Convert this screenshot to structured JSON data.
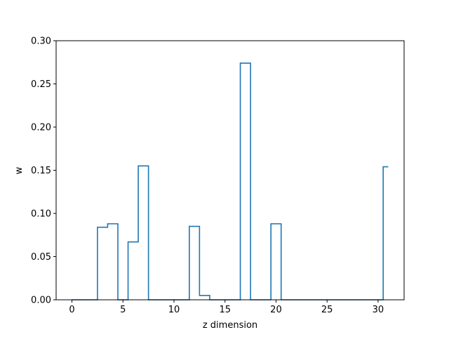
{
  "chart_data": {
    "type": "line",
    "drawstyle": "steps-mid",
    "title": "",
    "xlabel": "z dimension",
    "ylabel": "w",
    "xlim": [
      -1.55,
      32.55
    ],
    "ylim": [
      0,
      0.3
    ],
    "xticks": [
      0,
      5,
      10,
      15,
      20,
      25,
      30
    ],
    "xtick_labels": [
      "0",
      "5",
      "10",
      "15",
      "20",
      "25",
      "30"
    ],
    "yticks": [
      0,
      0.05,
      0.1,
      0.15,
      0.2,
      0.25,
      0.3
    ],
    "ytick_labels": [
      "0.00",
      "0.05",
      "0.10",
      "0.15",
      "0.20",
      "0.25",
      "0.30"
    ],
    "grid": false,
    "series": [
      {
        "color": "#1f77b4",
        "x": [
          0,
          1,
          2,
          3,
          4,
          5,
          6,
          7,
          8,
          9,
          10,
          11,
          12,
          13,
          14,
          15,
          16,
          17,
          18,
          19,
          20,
          21,
          22,
          23,
          24,
          25,
          26,
          27,
          28,
          29,
          30,
          31
        ],
        "y": [
          0,
          0,
          0,
          0.084,
          0.088,
          0,
          0.067,
          0.155,
          0,
          0,
          0,
          0,
          0.085,
          0.005,
          0,
          0,
          0,
          0.274,
          0,
          0,
          0.088,
          0,
          0,
          0,
          0,
          0,
          0,
          0,
          0,
          0,
          0,
          0.154
        ]
      }
    ]
  }
}
